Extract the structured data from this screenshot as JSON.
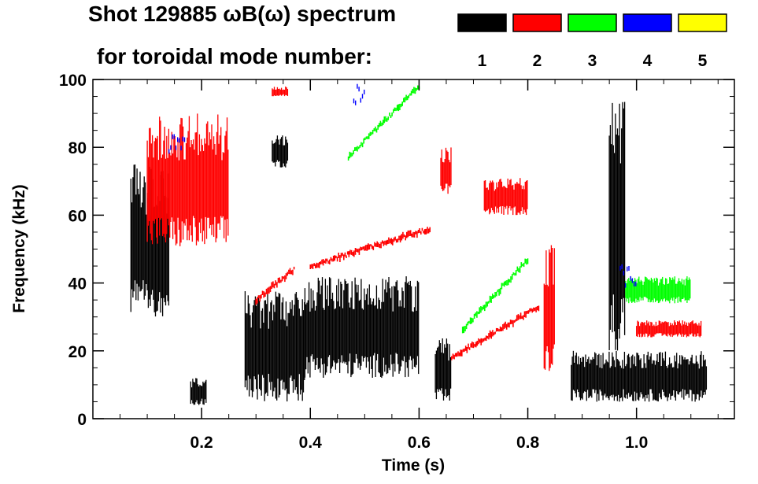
{
  "chart_data": {
    "type": "heatmap",
    "title_line1": "Shot 129885 ωB(ω) spectrum",
    "title_line2": "for toroidal mode number:",
    "xlabel": "Time (s)",
    "ylabel": "Frequency (kHz)",
    "xlim": [
      0.0,
      1.18
    ],
    "ylim": [
      0,
      100
    ],
    "x_ticks": [
      0.2,
      0.4,
      0.6,
      0.8,
      1.0
    ],
    "x_tick_labels": [
      "0.2",
      "0.4",
      "0.6",
      "0.8",
      "1.0"
    ],
    "y_ticks": [
      0,
      20,
      40,
      60,
      80,
      100
    ],
    "y_tick_labels": [
      "0",
      "20",
      "40",
      "60",
      "80",
      "100"
    ],
    "legend_placement": "top-right",
    "modes": [
      {
        "label": "1",
        "color": "#000000"
      },
      {
        "label": "2",
        "color": "#ff0000"
      },
      {
        "label": "3",
        "color": "#00ff00"
      },
      {
        "label": "4",
        "color": "#0000ff"
      },
      {
        "label": "5",
        "color": "#ffff00"
      }
    ],
    "regions": [
      {
        "mode": "1",
        "t": [
          0.07,
          0.14
        ],
        "f": [
          30,
          75
        ],
        "kind": "block"
      },
      {
        "mode": "1",
        "t": [
          0.18,
          0.21
        ],
        "f": [
          4,
          12
        ],
        "kind": "block"
      },
      {
        "mode": "1",
        "t": [
          0.28,
          0.39
        ],
        "f": [
          5,
          38
        ],
        "kind": "block"
      },
      {
        "mode": "1",
        "t": [
          0.33,
          0.36
        ],
        "f": [
          74,
          84
        ],
        "kind": "block"
      },
      {
        "mode": "1",
        "t": [
          0.39,
          0.6
        ],
        "f": [
          12,
          42
        ],
        "kind": "block"
      },
      {
        "mode": "1",
        "t": [
          0.63,
          0.66
        ],
        "f": [
          4,
          24
        ],
        "kind": "block"
      },
      {
        "mode": "1",
        "t": [
          0.88,
          1.13
        ],
        "f": [
          5,
          20
        ],
        "kind": "block"
      },
      {
        "mode": "1",
        "t": [
          0.95,
          0.98
        ],
        "f": [
          20,
          95
        ],
        "kind": "block"
      },
      {
        "mode": "2",
        "t": [
          0.1,
          0.25
        ],
        "f": [
          50,
          90
        ],
        "kind": "block"
      },
      {
        "mode": "2",
        "t": [
          0.72,
          0.8
        ],
        "f": [
          60,
          71
        ],
        "kind": "block"
      },
      {
        "mode": "2",
        "t": [
          0.64,
          0.66
        ],
        "f": [
          66,
          80
        ],
        "kind": "block"
      },
      {
        "mode": "2",
        "t": [
          0.83,
          0.85
        ],
        "f": [
          14,
          52
        ],
        "kind": "block"
      },
      {
        "mode": "2",
        "t": [
          1.0,
          1.12
        ],
        "f": [
          24,
          29
        ],
        "kind": "block"
      },
      {
        "mode": "2",
        "t": [
          0.33,
          0.36
        ],
        "f": [
          95,
          98
        ],
        "kind": "block"
      },
      {
        "mode": "2",
        "t": [
          0.3,
          0.37
        ],
        "f": [
          35,
          44
        ],
        "kind": "ridge"
      },
      {
        "mode": "2",
        "t": [
          0.4,
          0.62
        ],
        "f": [
          45,
          56
        ],
        "kind": "ridge"
      },
      {
        "mode": "2",
        "t": [
          0.66,
          0.82
        ],
        "f": [
          18,
          33
        ],
        "kind": "ridge"
      },
      {
        "mode": "3",
        "t": [
          0.47,
          0.6
        ],
        "f": [
          77,
          98
        ],
        "kind": "ridge"
      },
      {
        "mode": "3",
        "t": [
          0.68,
          0.8
        ],
        "f": [
          26,
          47
        ],
        "kind": "ridge"
      },
      {
        "mode": "3",
        "t": [
          0.98,
          1.1
        ],
        "f": [
          34,
          42
        ],
        "kind": "block"
      },
      {
        "mode": "4",
        "t": [
          0.14,
          0.17
        ],
        "f": [
          78,
          84
        ],
        "kind": "sparse"
      },
      {
        "mode": "4",
        "t": [
          0.48,
          0.5
        ],
        "f": [
          92,
          99
        ],
        "kind": "sparse"
      },
      {
        "mode": "4",
        "t": [
          0.97,
          1.0
        ],
        "f": [
          38,
          46
        ],
        "kind": "sparse"
      }
    ]
  }
}
